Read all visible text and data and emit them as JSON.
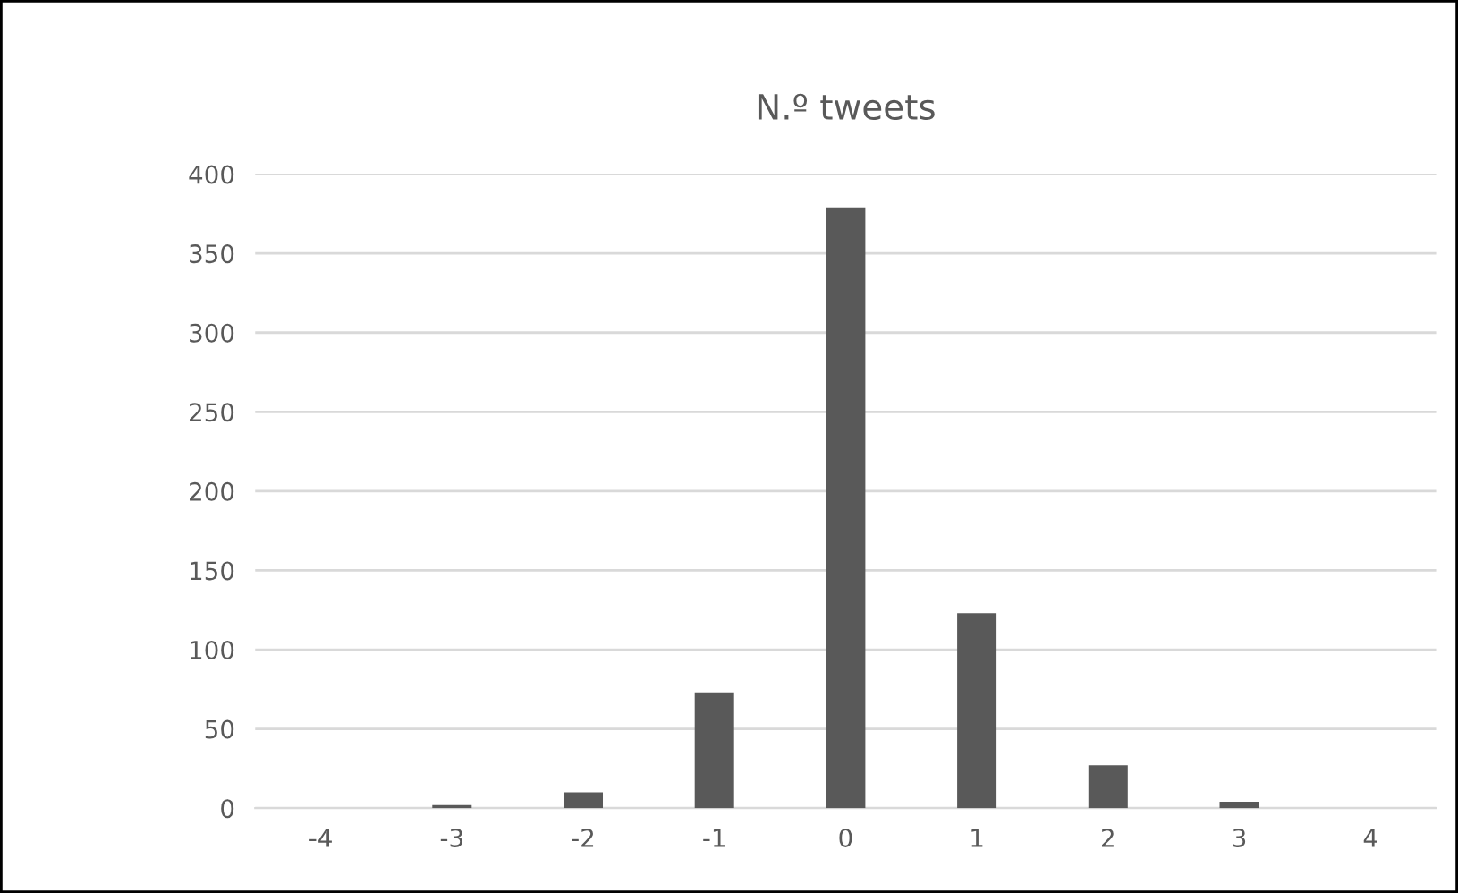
{
  "chart_data": {
    "type": "bar",
    "title": "N.º tweets",
    "categories": [
      "-4",
      "-3",
      "-2",
      "-1",
      "0",
      "1",
      "2",
      "3",
      "4"
    ],
    "values": [
      0,
      2,
      10,
      73,
      379,
      123,
      27,
      4,
      0
    ],
    "color": "#595959",
    "ylim": [
      0,
      400
    ],
    "yticks": [
      0,
      50,
      100,
      150,
      200,
      250,
      300,
      350,
      400
    ],
    "grid": "y",
    "legend": false
  }
}
